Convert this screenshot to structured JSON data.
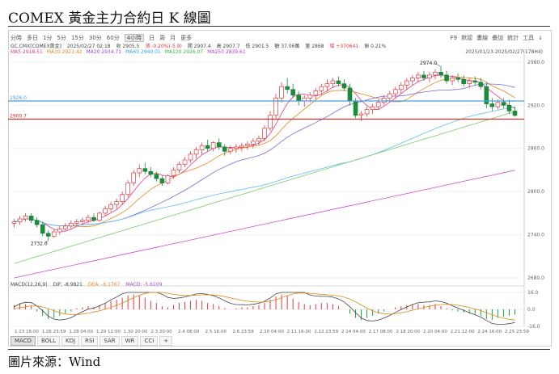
{
  "title": "COMEX 黃金主力合約日 K 線圖",
  "source": "圖片來源：Wind",
  "toolbar": {
    "periods": [
      "分時",
      "多日",
      "1分",
      "5分",
      "15分",
      "30分",
      "60分",
      "4小時",
      "日",
      "周",
      "月",
      "更多"
    ],
    "active_period": "4小時",
    "right_items": [
      "F9",
      "默認",
      "畫線",
      "疊加",
      "統計",
      "工具",
      "↓"
    ]
  },
  "quote": {
    "symbol": "GC.CMX[COMEX黃金]",
    "time": "2025/02/27 02:18",
    "close": "收 2905.5",
    "change": "漲 -0.20%(-5.9)",
    "open": "開 2907.4",
    "high": "高 2907.7",
    "low": "低 2901.5",
    "amount": "額 37.06萬",
    "volume": "量 2868",
    "oi_change": "增 +370641",
    "amplitude": "振 0.21%"
  },
  "ma_legend": [
    {
      "label": "MA5 2918.51",
      "cls": "ma5"
    },
    {
      "label": "MA10 2921.42",
      "cls": "ma10"
    },
    {
      "label": "MA20 2934.71",
      "cls": "ma20"
    },
    {
      "label": "MA60 2940.01",
      "cls": "ma60"
    },
    {
      "label": "MA120 2926.07",
      "cls": "ma120"
    },
    {
      "label": "MA250 2839.61",
      "cls": "ma250"
    }
  ],
  "date_range": "2025/01/23-2025/02/27(178H4)",
  "macd_legend": {
    "name": "MACD(12,26,9)",
    "dif": "DIF: -8.9821",
    "dea": "DEA: -6.1767",
    "macd": "MACD: -5.6109"
  },
  "indicator_tabs": [
    "MACD",
    "BOLL",
    "KDJ",
    "RSI",
    "SAR",
    "WR",
    "CCI",
    "+"
  ],
  "chart_data": {
    "type": "candlestick",
    "price_axis": {
      "ticks": [
        2980,
        2920,
        2860,
        2800,
        2740,
        2680
      ],
      "ylim": [
        2680,
        2990
      ]
    },
    "macd_axis": {
      "ticks": [
        16.0,
        0.0,
        -16.0
      ]
    },
    "x_ticks": [
      "1.23 16:00",
      "1.26 23:59",
      "1.28 04:00",
      "1.29 12:00",
      "1.30 20:00",
      "2.3 20:00",
      "2.4 08:00",
      "2.5 16:00",
      "2.6 23:59",
      "2.10 04:00",
      "2.11 16:00",
      "2.12 23:59",
      "2.14 04:00",
      "2.17 08:00",
      "2.18 20:00",
      "2.20 04:00",
      "2.21 12:00",
      "2.24 16:00",
      "2.25 23:59"
    ],
    "annotations": [
      {
        "label": "2732.0",
        "type": "low"
      },
      {
        "label": "2974.0",
        "type": "high"
      }
    ],
    "horizontal_lines": [
      {
        "label": "2926.0",
        "value": 2926.0,
        "color": "#4a9de0"
      },
      {
        "label": "2900.7",
        "value": 2900.7,
        "color": "#c0392b"
      }
    ],
    "candles": [
      [
        2756,
        2762,
        2750,
        2758
      ],
      [
        2758,
        2766,
        2754,
        2762
      ],
      [
        2762,
        2770,
        2758,
        2766
      ],
      [
        2766,
        2770,
        2756,
        2760
      ],
      [
        2760,
        2764,
        2750,
        2754
      ],
      [
        2754,
        2758,
        2738,
        2742
      ],
      [
        2742,
        2746,
        2732,
        2738
      ],
      [
        2738,
        2748,
        2736,
        2744
      ],
      [
        2744,
        2752,
        2740,
        2748
      ],
      [
        2748,
        2756,
        2746,
        2752
      ],
      [
        2752,
        2760,
        2748,
        2756
      ],
      [
        2756,
        2762,
        2752,
        2758
      ],
      [
        2758,
        2764,
        2754,
        2760
      ],
      [
        2760,
        2768,
        2756,
        2764
      ],
      [
        2764,
        2770,
        2758,
        2760
      ],
      [
        2760,
        2772,
        2758,
        2770
      ],
      [
        2770,
        2780,
        2766,
        2776
      ],
      [
        2776,
        2786,
        2772,
        2782
      ],
      [
        2782,
        2790,
        2776,
        2786
      ],
      [
        2786,
        2800,
        2782,
        2796
      ],
      [
        2796,
        2816,
        2792,
        2812
      ],
      [
        2812,
        2830,
        2808,
        2826
      ],
      [
        2826,
        2838,
        2820,
        2832
      ],
      [
        2832,
        2840,
        2824,
        2828
      ],
      [
        2828,
        2834,
        2820,
        2824
      ],
      [
        2824,
        2828,
        2814,
        2818
      ],
      [
        2818,
        2822,
        2808,
        2812
      ],
      [
        2812,
        2824,
        2810,
        2822
      ],
      [
        2822,
        2834,
        2818,
        2830
      ],
      [
        2830,
        2842,
        2826,
        2838
      ],
      [
        2838,
        2848,
        2834,
        2844
      ],
      [
        2844,
        2856,
        2840,
        2852
      ],
      [
        2852,
        2862,
        2846,
        2858
      ],
      [
        2858,
        2868,
        2852,
        2864
      ],
      [
        2864,
        2872,
        2856,
        2860
      ],
      [
        2860,
        2870,
        2856,
        2868
      ],
      [
        2868,
        2874,
        2858,
        2862
      ],
      [
        2862,
        2866,
        2850,
        2856
      ],
      [
        2856,
        2864,
        2852,
        2860
      ],
      [
        2860,
        2866,
        2854,
        2862
      ],
      [
        2862,
        2868,
        2856,
        2864
      ],
      [
        2864,
        2870,
        2858,
        2866
      ],
      [
        2866,
        2874,
        2860,
        2870
      ],
      [
        2870,
        2878,
        2864,
        2874
      ],
      [
        2874,
        2892,
        2870,
        2888
      ],
      [
        2888,
        2912,
        2884,
        2906
      ],
      [
        2906,
        2936,
        2902,
        2930
      ],
      [
        2930,
        2952,
        2924,
        2946
      ],
      [
        2946,
        2958,
        2936,
        2942
      ],
      [
        2942,
        2950,
        2930,
        2934
      ],
      [
        2934,
        2940,
        2920,
        2926
      ],
      [
        2926,
        2934,
        2918,
        2930
      ],
      [
        2930,
        2938,
        2924,
        2934
      ],
      [
        2934,
        2944,
        2928,
        2940
      ],
      [
        2940,
        2950,
        2934,
        2946
      ],
      [
        2946,
        2956,
        2940,
        2950
      ],
      [
        2950,
        2958,
        2944,
        2954
      ],
      [
        2954,
        2960,
        2946,
        2950
      ],
      [
        2950,
        2956,
        2940,
        2944
      ],
      [
        2944,
        2950,
        2920,
        2926
      ],
      [
        2926,
        2930,
        2902,
        2906
      ],
      [
        2906,
        2912,
        2898,
        2908
      ],
      [
        2908,
        2918,
        2904,
        2914
      ],
      [
        2914,
        2922,
        2908,
        2918
      ],
      [
        2918,
        2928,
        2914,
        2924
      ],
      [
        2924,
        2934,
        2920,
        2930
      ],
      [
        2930,
        2940,
        2926,
        2936
      ],
      [
        2936,
        2946,
        2930,
        2942
      ],
      [
        2942,
        2952,
        2936,
        2948
      ],
      [
        2948,
        2958,
        2942,
        2954
      ],
      [
        2954,
        2962,
        2948,
        2958
      ],
      [
        2958,
        2966,
        2952,
        2962
      ],
      [
        2962,
        2968,
        2954,
        2958
      ],
      [
        2958,
        2966,
        2952,
        2962
      ],
      [
        2962,
        2970,
        2956,
        2966
      ],
      [
        2966,
        2974,
        2958,
        2962
      ],
      [
        2962,
        2968,
        2950,
        2954
      ],
      [
        2954,
        2962,
        2948,
        2958
      ],
      [
        2958,
        2964,
        2952,
        2956
      ],
      [
        2956,
        2962,
        2946,
        2950
      ],
      [
        2950,
        2958,
        2944,
        2954
      ],
      [
        2954,
        2960,
        2948,
        2952
      ],
      [
        2952,
        2958,
        2942,
        2946
      ],
      [
        2946,
        2952,
        2916,
        2922
      ],
      [
        2922,
        2930,
        2912,
        2918
      ],
      [
        2918,
        2928,
        2914,
        2924
      ],
      [
        2924,
        2930,
        2916,
        2920
      ],
      [
        2920,
        2928,
        2908,
        2912
      ],
      [
        2912,
        2918,
        2904,
        2906
      ]
    ],
    "macd": [
      4,
      6,
      5,
      3,
      -2,
      -6,
      -9,
      -8,
      -6,
      -4,
      -2,
      1,
      2,
      3,
      2,
      4,
      6,
      8,
      9,
      11,
      13,
      14,
      13,
      11,
      8,
      6,
      3,
      2,
      4,
      6,
      7,
      8,
      9,
      8,
      6,
      5,
      3,
      1,
      0,
      1,
      2,
      2,
      3,
      4,
      6,
      9,
      12,
      14,
      13,
      10,
      7,
      5,
      4,
      5,
      6,
      6,
      5,
      3,
      0,
      -4,
      -8,
      -10,
      -8,
      -6,
      -4,
      -2,
      0,
      2,
      3,
      4,
      5,
      5,
      4,
      4,
      5,
      3,
      1,
      -1,
      -2,
      -3,
      -4,
      -5,
      -6,
      -9,
      -10,
      -8,
      -7,
      -6,
      -5
    ]
  }
}
